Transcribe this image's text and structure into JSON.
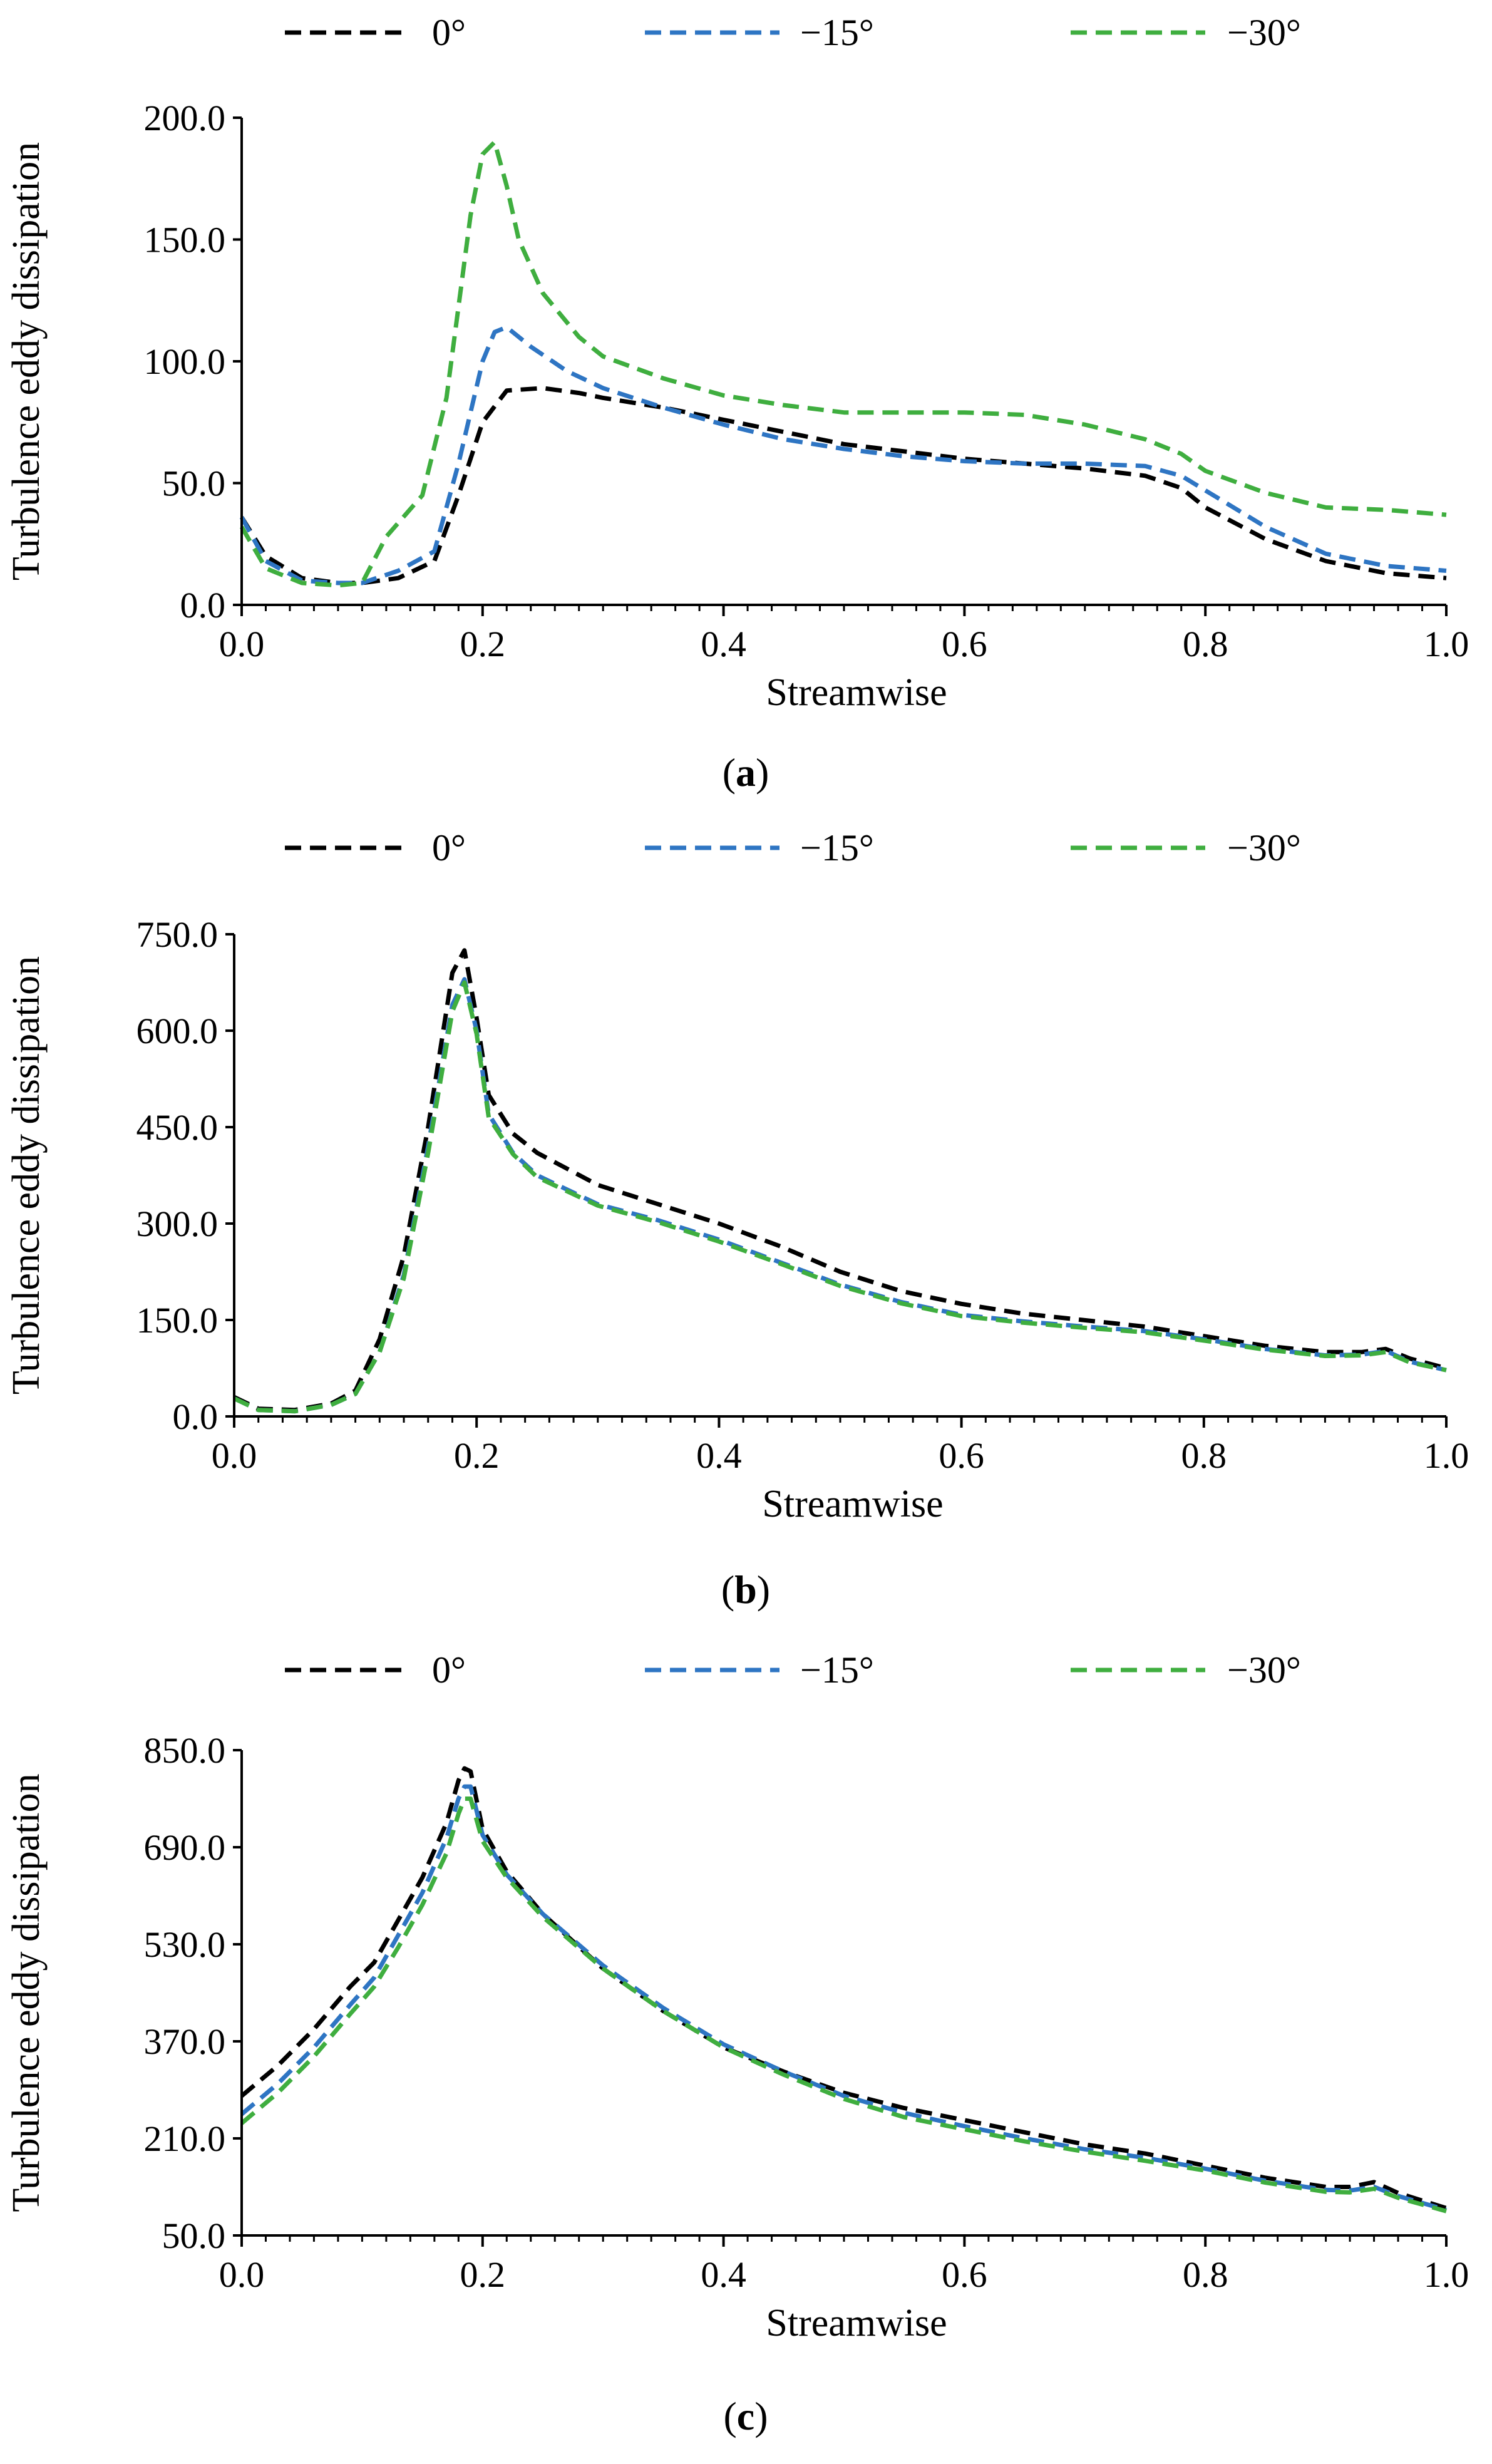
{
  "figure": {
    "panels": [
      {
        "id": "a",
        "caption_open": "(",
        "caption_letter": "a",
        "caption_close": ")"
      },
      {
        "id": "b",
        "caption_open": "(",
        "caption_letter": "b",
        "caption_close": ")"
      },
      {
        "id": "c",
        "caption_open": "(",
        "caption_letter": "c",
        "caption_close": ")"
      }
    ]
  },
  "chart_data": [
    {
      "type": "line",
      "panel": "a",
      "title": "",
      "xlabel": "Streamwise",
      "ylabel": "Turbulence eddy dissipation",
      "xlim": [
        0.0,
        1.0
      ],
      "ylim": [
        0.0,
        200.0
      ],
      "xticks": [
        0.0,
        0.2,
        0.4,
        0.6,
        0.8,
        1.0
      ],
      "xtick_labels": [
        "0.0",
        "0.2",
        "0.4",
        "0.6",
        "0.8",
        "1.0"
      ],
      "yticks": [
        0.0,
        50.0,
        100.0,
        150.0,
        200.0
      ],
      "ytick_labels": [
        "0.0",
        "50.0",
        "100.0",
        "150.0",
        "200.0"
      ],
      "legend_position": "top",
      "line_style": "dashed",
      "series": [
        {
          "name": "0°",
          "color": "#000000",
          "x": [
            0,
            0.02,
            0.05,
            0.08,
            0.1,
            0.13,
            0.16,
            0.18,
            0.2,
            0.22,
            0.25,
            0.28,
            0.3,
            0.35,
            0.4,
            0.45,
            0.5,
            0.55,
            0.6,
            0.65,
            0.7,
            0.75,
            0.78,
            0.8,
            0.85,
            0.9,
            0.95,
            1.0
          ],
          "y": [
            36,
            20,
            11,
            9,
            9,
            11,
            18,
            45,
            75,
            88,
            89,
            87,
            85,
            81,
            76,
            71,
            66,
            63,
            60,
            58,
            56,
            53,
            48,
            40,
            27,
            18,
            13,
            11
          ]
        },
        {
          "name": "−15°",
          "color": "#2e75c3",
          "x": [
            0,
            0.02,
            0.05,
            0.08,
            0.1,
            0.13,
            0.16,
            0.18,
            0.2,
            0.21,
            0.22,
            0.24,
            0.27,
            0.3,
            0.35,
            0.4,
            0.45,
            0.5,
            0.55,
            0.6,
            0.65,
            0.7,
            0.75,
            0.78,
            0.8,
            0.85,
            0.9,
            0.95,
            1.0
          ],
          "y": [
            36,
            18,
            10,
            9,
            9,
            14,
            22,
            58,
            100,
            112,
            114,
            106,
            96,
            89,
            81,
            74,
            68,
            64,
            61,
            59,
            58,
            58,
            57,
            53,
            47,
            32,
            21,
            16,
            14
          ]
        },
        {
          "name": "−30°",
          "color": "#3fae3f",
          "x": [
            0,
            0.02,
            0.05,
            0.08,
            0.1,
            0.12,
            0.15,
            0.17,
            0.19,
            0.2,
            0.21,
            0.22,
            0.23,
            0.25,
            0.28,
            0.3,
            0.35,
            0.4,
            0.45,
            0.5,
            0.55,
            0.6,
            0.65,
            0.7,
            0.75,
            0.78,
            0.8,
            0.85,
            0.9,
            0.95,
            1.0
          ],
          "y": [
            32,
            15,
            9,
            8,
            9,
            28,
            45,
            85,
            160,
            185,
            190,
            172,
            150,
            128,
            110,
            102,
            93,
            86,
            82,
            79,
            79,
            79,
            78,
            74,
            68,
            62,
            55,
            46,
            40,
            39,
            37
          ]
        }
      ]
    },
    {
      "type": "line",
      "panel": "b",
      "title": "",
      "xlabel": "Streamwise",
      "ylabel": "Turbulence eddy dissipation",
      "xlim": [
        0.0,
        1.0
      ],
      "ylim": [
        0.0,
        750.0
      ],
      "xticks": [
        0.0,
        0.2,
        0.4,
        0.6,
        0.8,
        1.0
      ],
      "xtick_labels": [
        "0.0",
        "0.2",
        "0.4",
        "0.6",
        "0.8",
        "1.0"
      ],
      "yticks": [
        0.0,
        150.0,
        300.0,
        450.0,
        600.0,
        750.0
      ],
      "ytick_labels": [
        "0.0",
        "150.0",
        "300.0",
        "450.0",
        "600.0",
        "750.0"
      ],
      "legend_position": "top",
      "line_style": "dashed",
      "series": [
        {
          "name": "0°",
          "color": "#000000",
          "x": [
            0,
            0.02,
            0.05,
            0.08,
            0.1,
            0.12,
            0.14,
            0.16,
            0.18,
            0.19,
            0.2,
            0.21,
            0.23,
            0.25,
            0.3,
            0.35,
            0.4,
            0.45,
            0.5,
            0.55,
            0.6,
            0.65,
            0.7,
            0.75,
            0.8,
            0.85,
            0.9,
            0.93,
            0.95,
            0.97,
            1.0
          ],
          "y": [
            30,
            12,
            10,
            20,
            40,
            120,
            250,
            450,
            690,
            725,
            620,
            500,
            440,
            410,
            360,
            330,
            300,
            265,
            225,
            195,
            175,
            160,
            150,
            140,
            125,
            110,
            100,
            100,
            105,
            90,
            75
          ]
        },
        {
          "name": "−15°",
          "color": "#2e75c3",
          "x": [
            0,
            0.02,
            0.05,
            0.08,
            0.1,
            0.12,
            0.14,
            0.16,
            0.18,
            0.19,
            0.2,
            0.21,
            0.23,
            0.25,
            0.3,
            0.35,
            0.4,
            0.45,
            0.5,
            0.55,
            0.6,
            0.65,
            0.7,
            0.75,
            0.8,
            0.85,
            0.9,
            0.93,
            0.95,
            0.97,
            1.0
          ],
          "y": [
            28,
            10,
            8,
            18,
            35,
            100,
            220,
            420,
            640,
            680,
            600,
            470,
            410,
            375,
            330,
            305,
            275,
            240,
            205,
            178,
            158,
            148,
            140,
            133,
            120,
            105,
            95,
            96,
            102,
            85,
            72
          ]
        },
        {
          "name": "−30°",
          "color": "#3fae3f",
          "x": [
            0,
            0.02,
            0.05,
            0.08,
            0.1,
            0.12,
            0.14,
            0.16,
            0.18,
            0.19,
            0.2,
            0.21,
            0.23,
            0.25,
            0.3,
            0.35,
            0.4,
            0.45,
            0.5,
            0.55,
            0.6,
            0.65,
            0.7,
            0.75,
            0.8,
            0.85,
            0.9,
            0.93,
            0.95,
            0.97,
            1.0
          ],
          "y": [
            28,
            10,
            8,
            18,
            35,
            100,
            215,
            410,
            630,
            675,
            595,
            465,
            408,
            372,
            328,
            302,
            272,
            238,
            203,
            176,
            156,
            146,
            138,
            131,
            118,
            104,
            94,
            95,
            100,
            84,
            72
          ]
        }
      ]
    },
    {
      "type": "line",
      "panel": "c",
      "title": "",
      "xlabel": "Streamwise",
      "ylabel": "Turbulence eddy dissipation",
      "xlim": [
        0.0,
        1.0
      ],
      "ylim": [
        50.0,
        850.0
      ],
      "xticks": [
        0.0,
        0.2,
        0.4,
        0.6,
        0.8,
        1.0
      ],
      "xtick_labels": [
        "0.0",
        "0.2",
        "0.4",
        "0.6",
        "0.8",
        "1.0"
      ],
      "yticks": [
        50.0,
        210.0,
        370.0,
        530.0,
        690.0,
        850.0
      ],
      "ytick_labels": [
        "50.0",
        "210.0",
        "370.0",
        "530.0",
        "690.0",
        "850.0"
      ],
      "legend_position": "top",
      "line_style": "dashed",
      "series": [
        {
          "name": "0°",
          "color": "#000000",
          "x": [
            0,
            0.03,
            0.06,
            0.09,
            0.11,
            0.13,
            0.15,
            0.17,
            0.18,
            0.185,
            0.19,
            0.2,
            0.22,
            0.25,
            0.3,
            0.35,
            0.4,
            0.45,
            0.5,
            0.55,
            0.6,
            0.65,
            0.7,
            0.75,
            0.8,
            0.85,
            0.9,
            0.92,
            0.94,
            0.96,
            1.0
          ],
          "y": [
            280,
            330,
            390,
            460,
            500,
            570,
            640,
            730,
            800,
            820,
            815,
            720,
            650,
            580,
            490,
            420,
            360,
            320,
            285,
            260,
            240,
            220,
            200,
            185,
            165,
            145,
            130,
            130,
            138,
            120,
            95
          ]
        },
        {
          "name": "−15°",
          "color": "#2e75c3",
          "x": [
            0,
            0.03,
            0.06,
            0.09,
            0.11,
            0.13,
            0.15,
            0.17,
            0.18,
            0.185,
            0.19,
            0.2,
            0.22,
            0.25,
            0.3,
            0.35,
            0.4,
            0.45,
            0.5,
            0.55,
            0.6,
            0.65,
            0.7,
            0.75,
            0.8,
            0.85,
            0.9,
            0.92,
            0.94,
            0.96,
            1.0
          ],
          "y": [
            250,
            300,
            360,
            430,
            475,
            545,
            615,
            705,
            770,
            790,
            790,
            710,
            645,
            580,
            495,
            425,
            365,
            320,
            280,
            252,
            230,
            210,
            192,
            178,
            160,
            140,
            125,
            124,
            130,
            115,
            92
          ]
        },
        {
          "name": "−30°",
          "color": "#3fae3f",
          "x": [
            0,
            0.03,
            0.06,
            0.09,
            0.11,
            0.13,
            0.15,
            0.17,
            0.18,
            0.185,
            0.19,
            0.2,
            0.22,
            0.25,
            0.3,
            0.35,
            0.4,
            0.45,
            0.5,
            0.55,
            0.6,
            0.65,
            0.7,
            0.75,
            0.8,
            0.85,
            0.9,
            0.92,
            0.94,
            0.96,
            1.0
          ],
          "y": [
            235,
            285,
            345,
            415,
            460,
            525,
            595,
            680,
            745,
            770,
            770,
            700,
            640,
            575,
            490,
            420,
            360,
            315,
            275,
            245,
            225,
            205,
            188,
            173,
            157,
            137,
            122,
            121,
            127,
            112,
            90
          ]
        }
      ]
    }
  ]
}
